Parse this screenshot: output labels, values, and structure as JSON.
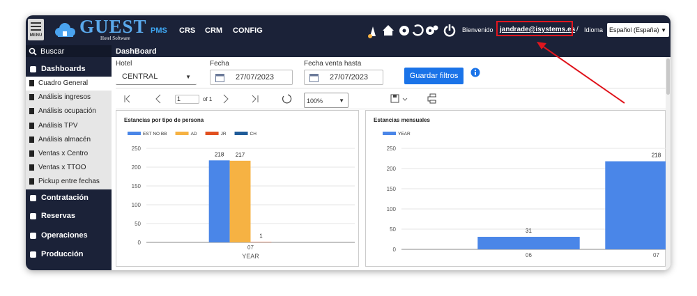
{
  "header": {
    "menu_label": "MENU",
    "logo": "GUEST",
    "logo_subtitle": "Hotel Software",
    "nav": [
      "PMS",
      "CRS",
      "CRM",
      "CONFIG"
    ],
    "welcome": "Bienvenido",
    "user": "jandrade@isystems.es",
    "separator": "/",
    "language_label": "Idioma",
    "language": "Español (España)"
  },
  "sidebar": {
    "search": "Buscar",
    "dashboards": "Dashboards",
    "items": [
      "Cuadro General",
      "Análisis ingresos",
      "Análisis ocupación",
      "Análisis TPV",
      "Análisis almacén",
      "Ventas x Centro",
      "Ventas x TTOO",
      "Pickup entre fechas"
    ],
    "sections": [
      "Contratación",
      "Reservas",
      "Operaciones",
      "Producción"
    ]
  },
  "page_title": "DashBoard",
  "filters": {
    "hotel_label": "Hotel",
    "hotel": "CENTRAL",
    "date_label": "Fecha",
    "date": "27/07/2023",
    "sale_date_label": "Fecha venta hasta",
    "sale_date": "27/07/2023",
    "save_button": "Guardar filtros"
  },
  "toolbar": {
    "page": "1",
    "page_count": "of 1",
    "zoom": "100%"
  },
  "chart_data": [
    {
      "type": "bar",
      "title": "Estancias por tipo de persona",
      "x_label": "YEAR",
      "categories": [
        "07"
      ],
      "series": [
        {
          "name": "EST NO BB",
          "color": "#4a86e8",
          "values": [
            218
          ]
        },
        {
          "name": "AD",
          "color": "#f6b243",
          "values": [
            217
          ]
        },
        {
          "name": "JR",
          "color": "#e1501f",
          "values": [
            1
          ]
        },
        {
          "name": "CH",
          "color": "#1f5c99",
          "values": [
            0
          ]
        }
      ],
      "ylim": [
        0,
        250
      ],
      "yticks": [
        0,
        50,
        100,
        150,
        200,
        250
      ],
      "grid": true
    },
    {
      "type": "bar",
      "title": "Estancias mensuales",
      "categories": [
        "06",
        "07"
      ],
      "series": [
        {
          "name": "YEAR",
          "color": "#4a86e8",
          "values": [
            31,
            218
          ]
        }
      ],
      "ylim": [
        0,
        250
      ],
      "yticks": [
        0,
        50,
        100,
        150,
        200,
        250
      ],
      "grid": true
    }
  ]
}
